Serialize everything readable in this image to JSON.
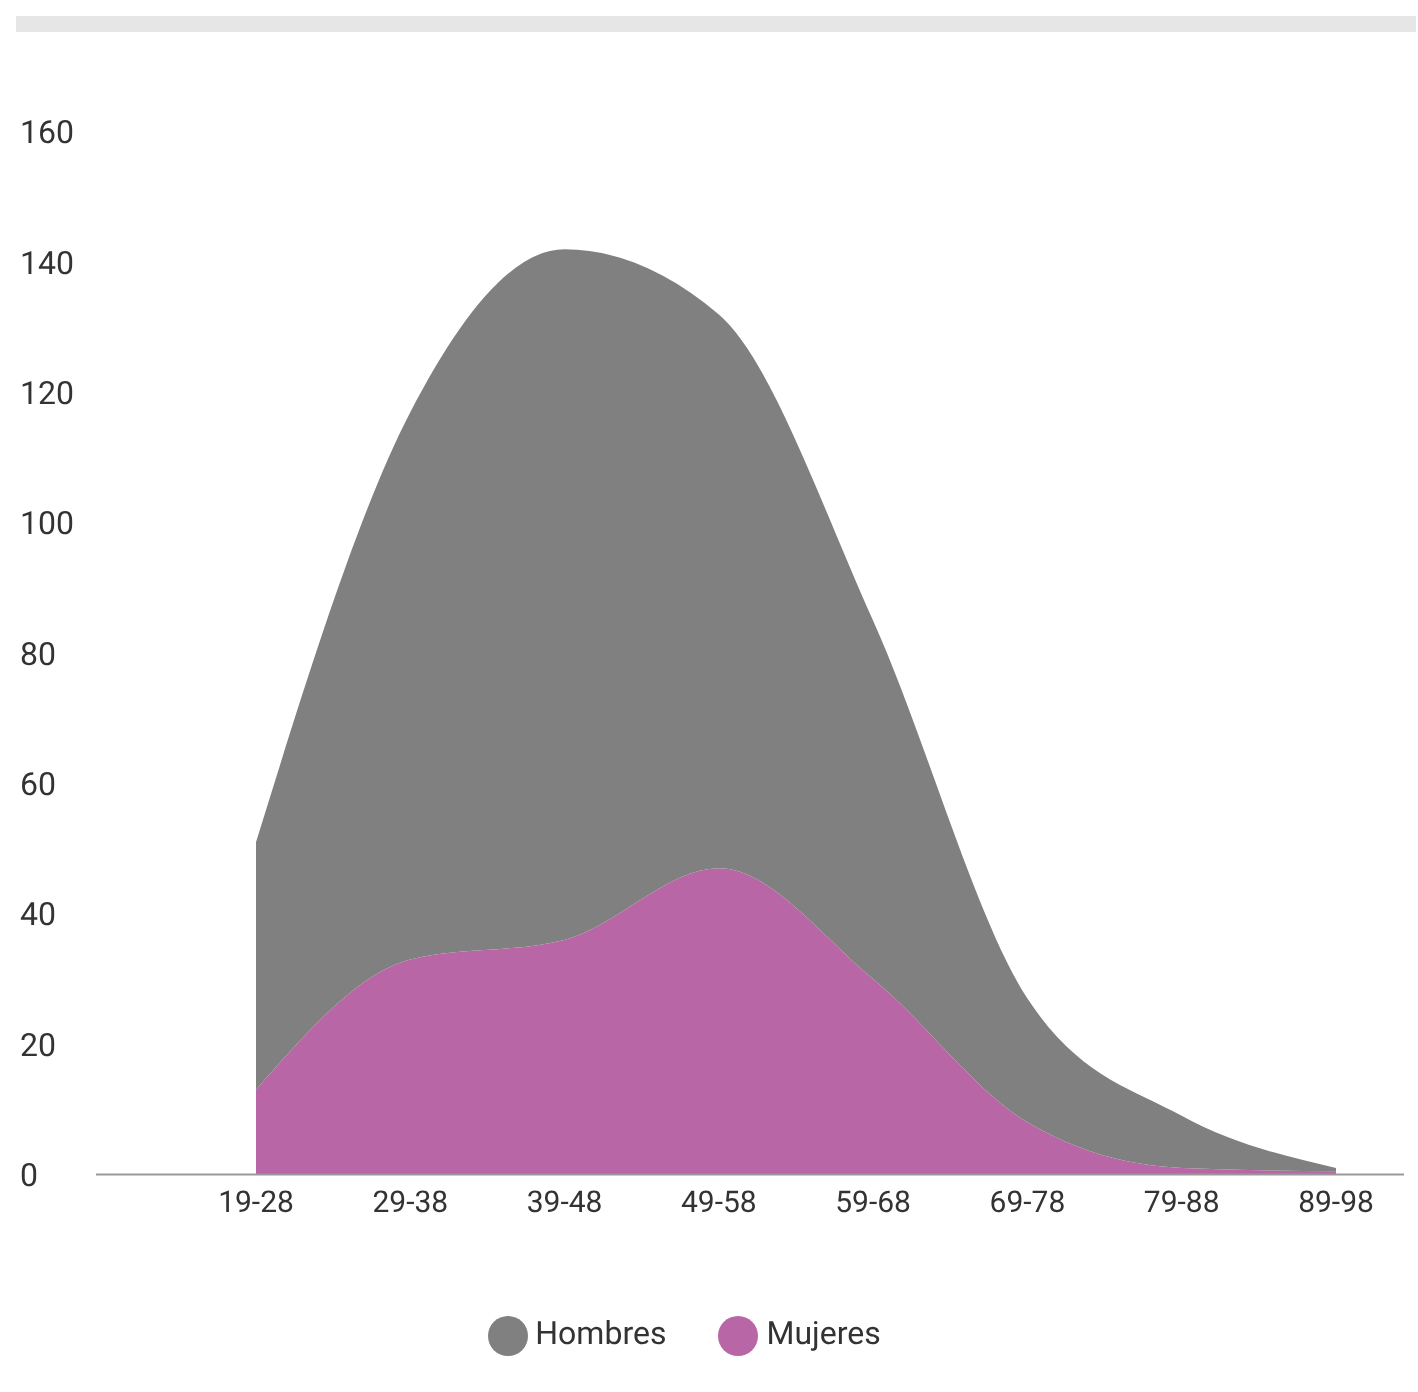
{
  "chart_data": {
    "type": "area",
    "stacked": true,
    "categories": [
      "19-28",
      "29-38",
      "39-48",
      "49-58",
      "59-68",
      "69-78",
      "79-88",
      "89-98"
    ],
    "series": [
      {
        "name": "Mujeres",
        "color": "#b966a6",
        "values": [
          13,
          33,
          36,
          47,
          30,
          8,
          1,
          0.5
        ]
      },
      {
        "name": "Hombres",
        "color": "#808080",
        "values": [
          38,
          84,
          106,
          85,
          55,
          19,
          8,
          0.5
        ]
      }
    ],
    "ylim": [
      0,
      160
    ],
    "yticks": [
      0,
      20,
      40,
      60,
      80,
      100,
      120,
      140,
      160
    ],
    "grid": false,
    "legend": "bottom"
  }
}
